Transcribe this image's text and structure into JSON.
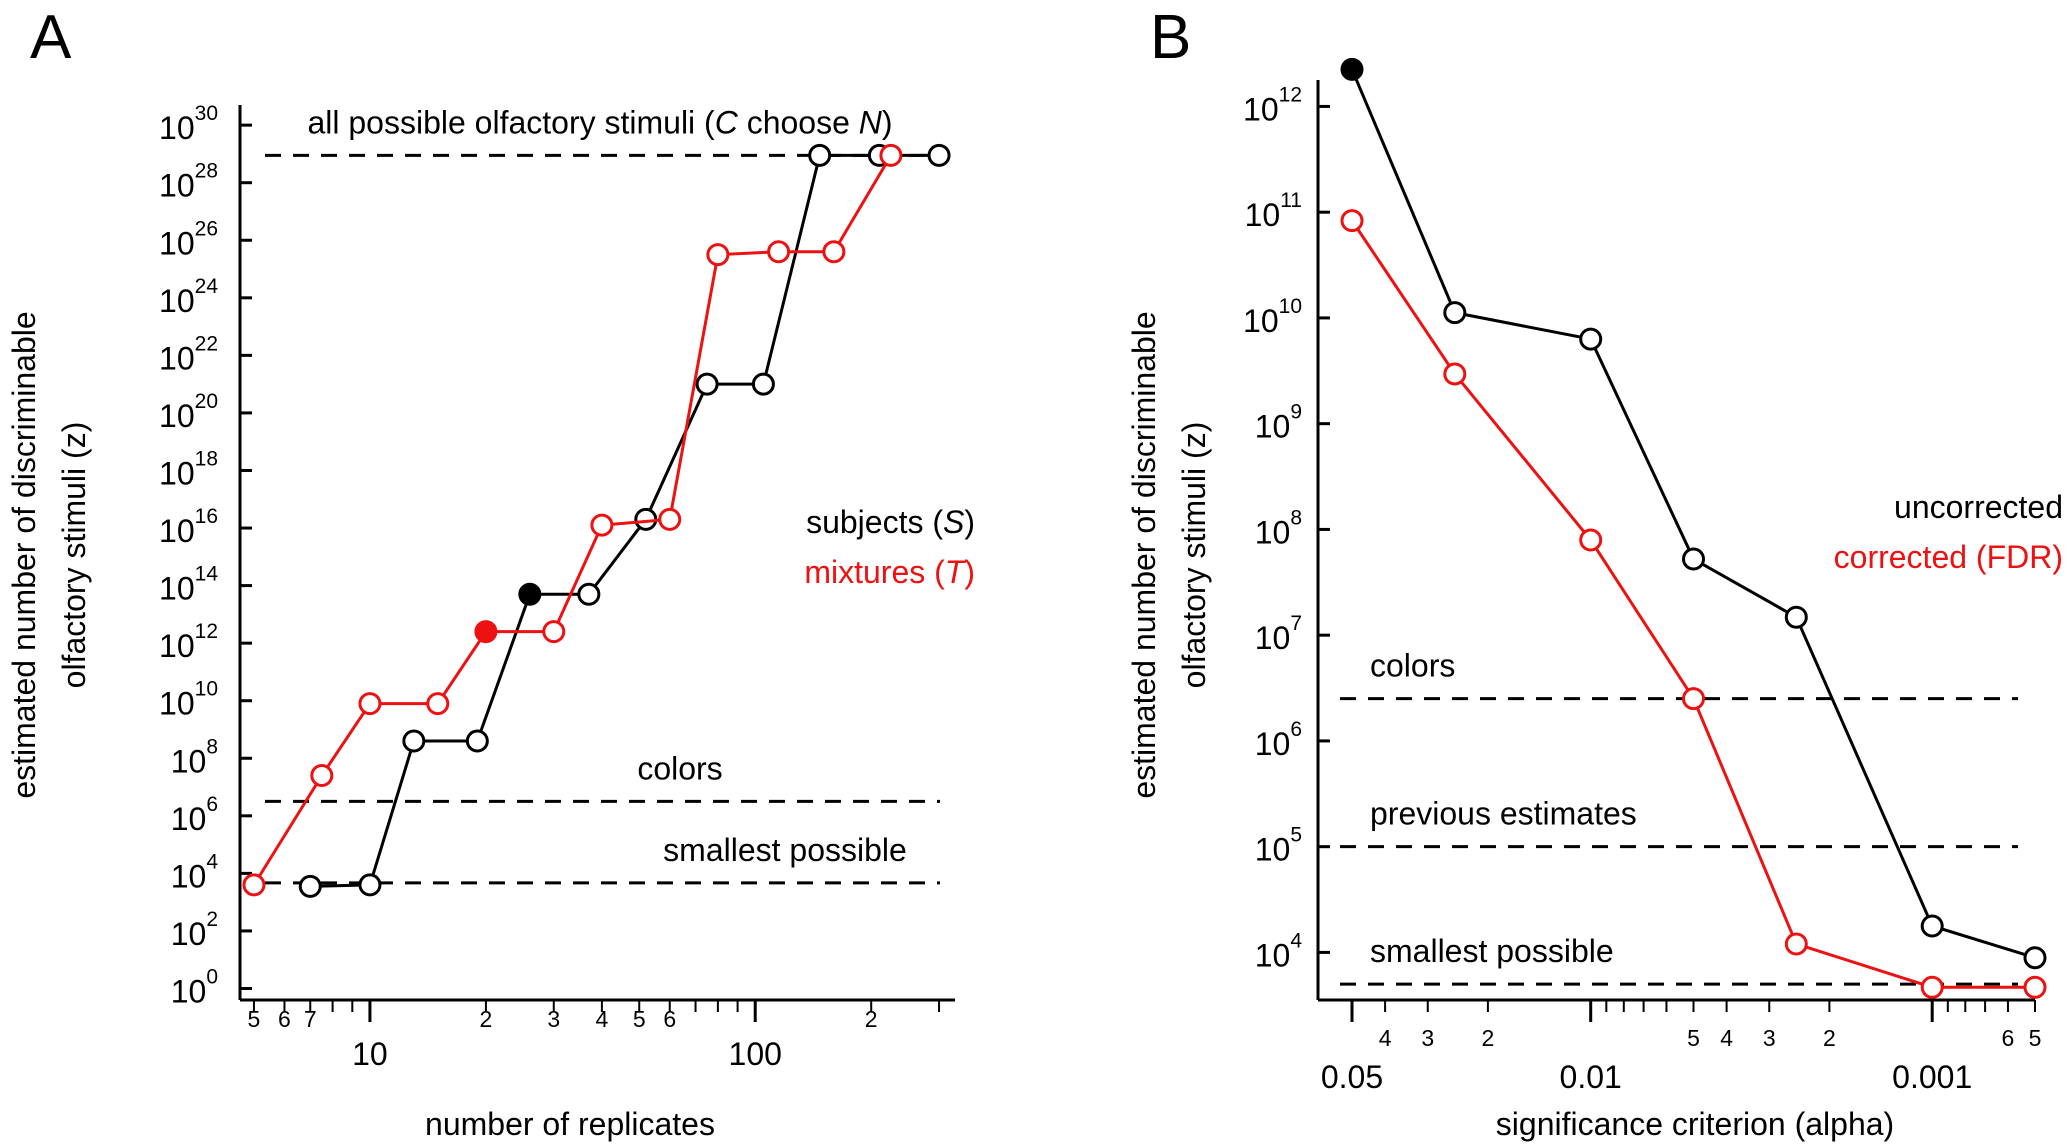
{
  "panels": [
    {
      "letter": "A",
      "chart_data": {
        "type": "line",
        "xlabel": "number of replicates",
        "ylabel": "estimated number of discriminable olfactory stimuli (z)",
        "x_scale": "log",
        "y_scale": "log",
        "xlim": [
          4.6,
          330
        ],
        "ylim_log10": [
          -0.4,
          30.7
        ],
        "x_major_ticks": [
          {
            "value": 10,
            "label": "10"
          },
          {
            "value": 100,
            "label": "100"
          }
        ],
        "x_minor_ticks": [
          {
            "value": 5,
            "label": "5"
          },
          {
            "value": 6,
            "label": "6"
          },
          {
            "value": 7,
            "label": "7"
          },
          {
            "value": 8,
            "label": ""
          },
          {
            "value": 9,
            "label": ""
          },
          {
            "value": 20,
            "label": "2"
          },
          {
            "value": 30,
            "label": "3"
          },
          {
            "value": 40,
            "label": "4"
          },
          {
            "value": 50,
            "label": "5"
          },
          {
            "value": 60,
            "label": "6"
          },
          {
            "value": 70,
            "label": ""
          },
          {
            "value": 80,
            "label": ""
          },
          {
            "value": 90,
            "label": ""
          },
          {
            "value": 200,
            "label": "2"
          },
          {
            "value": 300,
            "label": ""
          }
        ],
        "y_ticks": [
          {
            "exp": 0,
            "base": "10",
            "sup": "0"
          },
          {
            "exp": 2,
            "base": "10",
            "sup": "2"
          },
          {
            "exp": 4,
            "base": "10",
            "sup": "4"
          },
          {
            "exp": 6,
            "base": "10",
            "sup": "6"
          },
          {
            "exp": 8,
            "base": "10",
            "sup": "8"
          },
          {
            "exp": 10,
            "base": "10",
            "sup": "10"
          },
          {
            "exp": 12,
            "base": "10",
            "sup": "12"
          },
          {
            "exp": 14,
            "base": "10",
            "sup": "14"
          },
          {
            "exp": 16,
            "base": "10",
            "sup": "16"
          },
          {
            "exp": 18,
            "base": "10",
            "sup": "18"
          },
          {
            "exp": 20,
            "base": "10",
            "sup": "20"
          },
          {
            "exp": 22,
            "base": "10",
            "sup": "22"
          },
          {
            "exp": 24,
            "base": "10",
            "sup": "24"
          },
          {
            "exp": 26,
            "base": "10",
            "sup": "26"
          },
          {
            "exp": 28,
            "base": "10",
            "sup": "28"
          },
          {
            "exp": 30,
            "base": "10",
            "sup": "30"
          }
        ],
        "series": [
          {
            "name": "subjects (S)",
            "color": "#000000",
            "points": [
              {
                "x": 7,
                "log10_z": 3.55
              },
              {
                "x": 10,
                "log10_z": 3.6
              },
              {
                "x": 13,
                "log10_z": 8.6
              },
              {
                "x": 19,
                "log10_z": 8.6
              },
              {
                "x": 26,
                "log10_z": 13.7,
                "filled": true
              },
              {
                "x": 37,
                "log10_z": 13.7
              },
              {
                "x": 52,
                "log10_z": 16.3
              },
              {
                "x": 75,
                "log10_z": 21.0
              },
              {
                "x": 105,
                "log10_z": 21.0
              },
              {
                "x": 147,
                "log10_z": 28.95
              },
              {
                "x": 210,
                "log10_z": 28.95
              },
              {
                "x": 300,
                "log10_z": 28.95
              }
            ]
          },
          {
            "name": "mixtures (T)",
            "color": "#ee1111",
            "points": [
              {
                "x": 5,
                "log10_z": 3.6
              },
              {
                "x": 7.5,
                "log10_z": 7.4
              },
              {
                "x": 10,
                "log10_z": 9.9
              },
              {
                "x": 15,
                "log10_z": 9.9
              },
              {
                "x": 20,
                "log10_z": 12.4,
                "filled": true
              },
              {
                "x": 30,
                "log10_z": 12.4
              },
              {
                "x": 40,
                "log10_z": 16.1
              },
              {
                "x": 60,
                "log10_z": 16.3
              },
              {
                "x": 80,
                "log10_z": 25.5
              },
              {
                "x": 115,
                "log10_z": 25.6
              },
              {
                "x": 160,
                "log10_z": 25.6
              },
              {
                "x": 225,
                "log10_z": 28.95
              }
            ]
          }
        ],
        "reference_lines": [
          {
            "label_html": "all possible olfactory stimuli (<tspan font-style='italic'>C</tspan> choose <tspan font-style='italic'>N</tspan>)",
            "log10_z": 28.95
          },
          {
            "label": "colors",
            "log10_z": 6.5
          },
          {
            "label": "smallest possible",
            "log10_z": 3.67
          }
        ],
        "legend": {
          "placement": "right-middle",
          "entries": [
            {
              "prefix": "subjects (",
              "ital": "S",
              "suffix": ")",
              "color": "#000000"
            },
            {
              "prefix": "mixtures (",
              "ital": "T",
              "suffix": ")",
              "color": "#ee1111"
            }
          ]
        }
      }
    },
    {
      "letter": "B",
      "chart_data": {
        "type": "line",
        "xlabel": "significance criterion (alpha)",
        "ylabel": "estimated number of discriminable olfactory stimuli (z)",
        "x_scale": "log-reversed",
        "y_scale": "log",
        "xlim": [
          0.05,
          0.0005
        ],
        "ylim_log10": [
          3.55,
          12.25
        ],
        "x_major_ticks": [
          {
            "value": 0.05,
            "label": "0.05"
          },
          {
            "value": 0.01,
            "label": "0.01"
          },
          {
            "value": 0.001,
            "label": "0.001"
          }
        ],
        "x_minor_ticks": [
          {
            "value": 0.04,
            "label": "4"
          },
          {
            "value": 0.03,
            "label": "3"
          },
          {
            "value": 0.02,
            "label": "2"
          },
          {
            "value": 0.009,
            "label": ""
          },
          {
            "value": 0.008,
            "label": ""
          },
          {
            "value": 0.007,
            "label": ""
          },
          {
            "value": 0.006,
            "label": ""
          },
          {
            "value": 0.005,
            "label": "5"
          },
          {
            "value": 0.004,
            "label": "4"
          },
          {
            "value": 0.003,
            "label": "3"
          },
          {
            "value": 0.002,
            "label": "2"
          },
          {
            "value": 0.0009,
            "label": ""
          },
          {
            "value": 0.0008,
            "label": ""
          },
          {
            "value": 0.0007,
            "label": ""
          },
          {
            "value": 0.0006,
            "label": "6"
          },
          {
            "value": 0.0005,
            "label": "5"
          }
        ],
        "y_ticks": [
          {
            "exp": 4,
            "base": "10",
            "sup": "4"
          },
          {
            "exp": 5,
            "base": "10",
            "sup": "5"
          },
          {
            "exp": 6,
            "base": "10",
            "sup": "6"
          },
          {
            "exp": 7,
            "base": "10",
            "sup": "7"
          },
          {
            "exp": 8,
            "base": "10",
            "sup": "8"
          },
          {
            "exp": 9,
            "base": "10",
            "sup": "9"
          },
          {
            "exp": 10,
            "base": "10",
            "sup": "10"
          },
          {
            "exp": 11,
            "base": "10",
            "sup": "11"
          },
          {
            "exp": 12,
            "base": "10",
            "sup": "12"
          }
        ],
        "series": [
          {
            "name": "uncorrected",
            "color": "#000000",
            "points": [
              {
                "x": 0.05,
                "log10_z": 12.35,
                "filled": true
              },
              {
                "x": 0.025,
                "log10_z": 10.05
              },
              {
                "x": 0.01,
                "log10_z": 9.8
              },
              {
                "x": 0.005,
                "log10_z": 7.72
              },
              {
                "x": 0.0025,
                "log10_z": 7.17
              },
              {
                "x": 0.001,
                "log10_z": 4.25
              },
              {
                "x": 0.0005,
                "log10_z": 3.95
              }
            ]
          },
          {
            "name": "corrected (FDR)",
            "color": "#ee1111",
            "points": [
              {
                "x": 0.05,
                "log10_z": 10.92
              },
              {
                "x": 0.025,
                "log10_z": 9.47
              },
              {
                "x": 0.01,
                "log10_z": 7.9
              },
              {
                "x": 0.005,
                "log10_z": 6.4
              },
              {
                "x": 0.0025,
                "log10_z": 4.08
              },
              {
                "x": 0.001,
                "log10_z": 3.67
              },
              {
                "x": 0.0005,
                "log10_z": 3.67
              }
            ]
          }
        ],
        "reference_lines": [
          {
            "label": "colors",
            "log10_z": 6.4
          },
          {
            "label": "previous estimates",
            "log10_z": 5.0
          },
          {
            "label": "smallest possible",
            "log10_z": 3.7
          }
        ],
        "legend": {
          "placement": "right-middle",
          "entries": [
            {
              "prefix": "uncorrected",
              "ital": "",
              "suffix": "",
              "color": "#000000"
            },
            {
              "prefix": "corrected (FDR)",
              "ital": "",
              "suffix": "",
              "color": "#ee1111"
            }
          ]
        }
      }
    }
  ]
}
